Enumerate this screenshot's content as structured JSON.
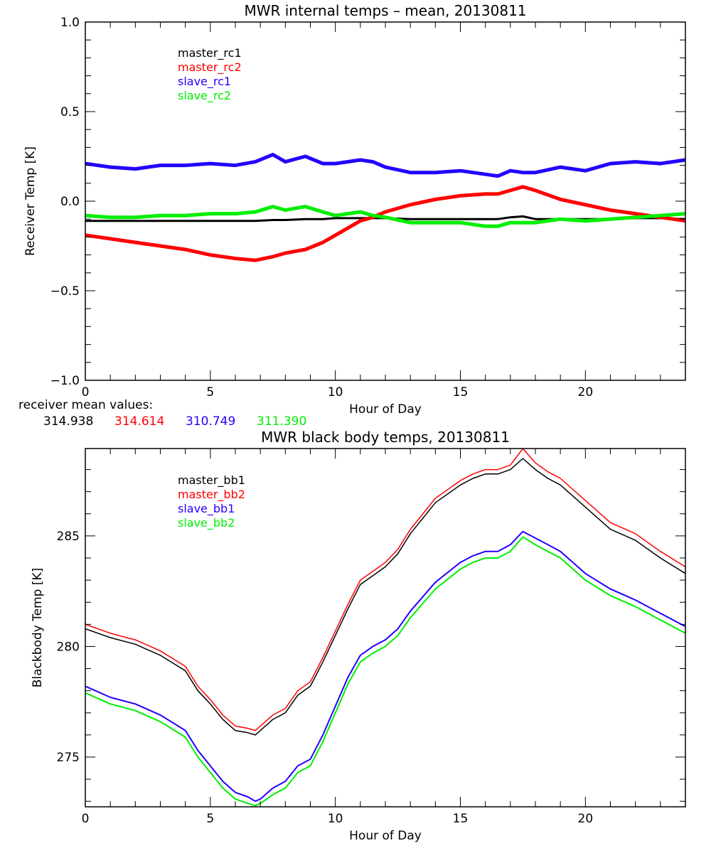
{
  "chart_data": [
    {
      "type": "line",
      "title": "MWR internal temps – mean, 20130811",
      "xlabel": "Hour of Day",
      "ylabel": "Receiver Temp [K]",
      "xlim": [
        0,
        24
      ],
      "ylim": [
        -1.0,
        1.0
      ],
      "xticks": [
        0,
        5,
        10,
        15,
        20
      ],
      "xtick_labels": [
        "0",
        "5",
        "10",
        "15",
        "20"
      ],
      "yticks": [
        -1.0,
        -0.5,
        0.0,
        0.5,
        1.0
      ],
      "ytick_labels": [
        "−1.0",
        "−0.5",
        "0.0",
        "0.5",
        "1.0"
      ],
      "grid": false,
      "legend_position": "top-left",
      "x": [
        0,
        1,
        2,
        3,
        4,
        5,
        6,
        6.8,
        7.5,
        8,
        8.8,
        9.5,
        10,
        11,
        11.5,
        12,
        13,
        14,
        15,
        16,
        16.5,
        17,
        17.5,
        18,
        19,
        20,
        21,
        22,
        23,
        24
      ],
      "series": [
        {
          "name": "master_rc1",
          "color": "#000000",
          "values": [
            -0.11,
            -0.11,
            -0.11,
            -0.11,
            -0.11,
            -0.11,
            -0.11,
            -0.11,
            -0.105,
            -0.105,
            -0.1,
            -0.1,
            -0.095,
            -0.095,
            -0.095,
            -0.095,
            -0.1,
            -0.1,
            -0.1,
            -0.1,
            -0.1,
            -0.09,
            -0.085,
            -0.1,
            -0.1,
            -0.1,
            -0.1,
            -0.095,
            -0.095,
            -0.1
          ]
        },
        {
          "name": "master_rc2",
          "color": "#ff0000",
          "values": [
            -0.19,
            -0.21,
            -0.23,
            -0.25,
            -0.27,
            -0.3,
            -0.32,
            -0.33,
            -0.31,
            -0.29,
            -0.27,
            -0.23,
            -0.19,
            -0.11,
            -0.09,
            -0.06,
            -0.02,
            0.01,
            0.03,
            0.04,
            0.04,
            0.06,
            0.08,
            0.06,
            0.01,
            -0.02,
            -0.05,
            -0.07,
            -0.09,
            -0.11
          ]
        },
        {
          "name": "slave_rc1",
          "color": "#2200ff",
          "values": [
            0.21,
            0.19,
            0.18,
            0.2,
            0.2,
            0.21,
            0.2,
            0.22,
            0.26,
            0.22,
            0.25,
            0.21,
            0.21,
            0.23,
            0.22,
            0.19,
            0.16,
            0.16,
            0.17,
            0.15,
            0.14,
            0.17,
            0.16,
            0.16,
            0.19,
            0.17,
            0.21,
            0.22,
            0.21,
            0.23
          ]
        },
        {
          "name": "slave_rc2",
          "color": "#00ee00",
          "values": [
            -0.08,
            -0.09,
            -0.09,
            -0.08,
            -0.08,
            -0.07,
            -0.07,
            -0.06,
            -0.03,
            -0.05,
            -0.03,
            -0.06,
            -0.08,
            -0.06,
            -0.08,
            -0.09,
            -0.12,
            -0.12,
            -0.12,
            -0.14,
            -0.14,
            -0.12,
            -0.12,
            -0.12,
            -0.1,
            -0.11,
            -0.1,
            -0.09,
            -0.08,
            -0.07
          ]
        }
      ],
      "annotation": {
        "label": "receiver mean values:",
        "values": [
          {
            "text": "314.938",
            "color": "#000000"
          },
          {
            "text": "314.614",
            "color": "#ff0000"
          },
          {
            "text": "310.749",
            "color": "#2200ff"
          },
          {
            "text": "311.390",
            "color": "#00ee00"
          }
        ]
      }
    },
    {
      "type": "line",
      "title": "MWR black body temps, 20130811",
      "xlabel": "Hour of Day",
      "ylabel": "Blackbody Temp [K]",
      "xlim": [
        0,
        24
      ],
      "ylim": [
        272.75,
        288.95
      ],
      "xticks": [
        0,
        5,
        10,
        15,
        20
      ],
      "xtick_labels": [
        "0",
        "5",
        "10",
        "15",
        "20"
      ],
      "yticks": [
        275,
        280,
        285
      ],
      "ytick_labels": [
        "275",
        "280",
        "285"
      ],
      "grid": false,
      "legend_position": "top-left",
      "x": [
        0,
        1,
        2,
        3,
        4,
        4.5,
        5,
        5.5,
        6,
        6.5,
        6.8,
        7,
        7.5,
        8,
        8.5,
        9,
        9.5,
        10,
        10.5,
        11,
        11.5,
        12,
        12.5,
        13,
        14,
        15,
        15.5,
        16,
        16.5,
        17,
        17.5,
        18,
        18.5,
        19,
        20,
        21,
        22,
        23,
        24
      ],
      "series": [
        {
          "name": "master_bb1",
          "color": "#000000",
          "values": [
            280.8,
            280.4,
            280.1,
            279.6,
            278.9,
            278.0,
            277.4,
            276.7,
            276.2,
            276.1,
            276.0,
            276.2,
            276.7,
            277.0,
            277.8,
            278.2,
            279.3,
            280.5,
            281.7,
            282.8,
            283.2,
            283.6,
            284.2,
            285.1,
            286.5,
            287.3,
            287.6,
            287.8,
            287.8,
            288.0,
            288.5,
            288.0,
            287.6,
            287.3,
            286.3,
            285.3,
            284.8,
            284.0,
            283.3
          ]
        },
        {
          "name": "master_bb2",
          "color": "#ff0000",
          "values": [
            281.0,
            280.6,
            280.3,
            279.8,
            279.1,
            278.2,
            277.6,
            276.9,
            276.4,
            276.3,
            276.2,
            276.4,
            276.9,
            277.2,
            278.0,
            278.4,
            279.5,
            280.7,
            281.9,
            283.0,
            283.4,
            283.8,
            284.4,
            285.3,
            286.7,
            287.5,
            287.8,
            288.0,
            288.0,
            288.2,
            288.95,
            288.3,
            287.9,
            287.6,
            286.6,
            285.6,
            285.1,
            284.3,
            283.6
          ]
        },
        {
          "name": "slave_bb1",
          "color": "#2200ff",
          "values": [
            278.2,
            277.7,
            277.4,
            276.9,
            276.2,
            275.3,
            274.6,
            273.9,
            273.4,
            273.2,
            273.0,
            273.1,
            273.6,
            273.9,
            274.6,
            274.9,
            276.0,
            277.3,
            278.6,
            279.6,
            280.0,
            280.3,
            280.8,
            281.6,
            282.9,
            283.8,
            284.1,
            284.3,
            284.3,
            284.6,
            285.2,
            284.9,
            284.6,
            284.3,
            283.3,
            282.6,
            282.1,
            281.5,
            280.9
          ]
        },
        {
          "name": "slave_bb2",
          "color": "#00ee00",
          "values": [
            277.9,
            277.4,
            277.1,
            276.6,
            275.9,
            275.0,
            274.3,
            273.6,
            273.1,
            272.9,
            272.8,
            272.9,
            273.3,
            273.6,
            274.3,
            274.6,
            275.7,
            277.0,
            278.3,
            279.3,
            279.7,
            280.0,
            280.5,
            281.3,
            282.6,
            283.5,
            283.8,
            284.0,
            284.0,
            284.3,
            284.95,
            284.6,
            284.3,
            284.0,
            283.0,
            282.3,
            281.8,
            281.2,
            280.6
          ]
        }
      ]
    }
  ]
}
